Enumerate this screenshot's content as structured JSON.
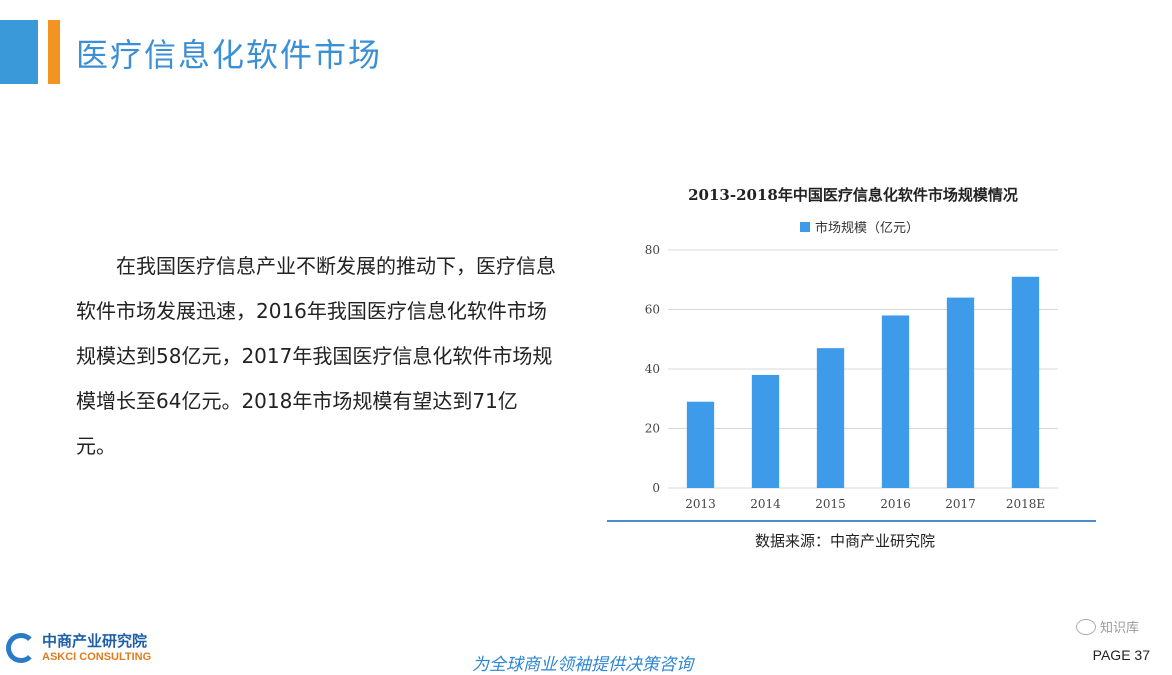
{
  "page": {
    "title": "医疗信息化软件市场",
    "body_text": "在我国医疗信息产业不断发展的推动下，医疗信息软件市场发展迅速，2016年我国医疗信息化软件市场规模达到58亿元，2017年我国医疗信息化软件市场规模增长至64亿元。2018年市场规模有望达到71亿元。",
    "source": "数据来源：中商产业研究院",
    "slogan": "为全球商业领袖提供决策咨询",
    "page_number": "PAGE  37",
    "corner_mark": "知识库"
  },
  "logo": {
    "cn": "中商产业研究院",
    "en": "ASKCI CONSULTING"
  },
  "chart_data": {
    "type": "bar",
    "title": "2013-2018年中国医疗信息化软件市场规模情况",
    "categories": [
      "2013",
      "2014",
      "2015",
      "2016",
      "2017",
      "2018E"
    ],
    "series": [
      {
        "name": "市场规模（亿元）",
        "values": [
          29,
          38,
          47,
          58,
          64,
          71
        ]
      }
    ],
    "ylim": [
      0,
      80
    ],
    "yticks": [
      0,
      20,
      40,
      60,
      80
    ],
    "grid": true,
    "legend": "top-center",
    "bar_color": "#3d9be9"
  }
}
